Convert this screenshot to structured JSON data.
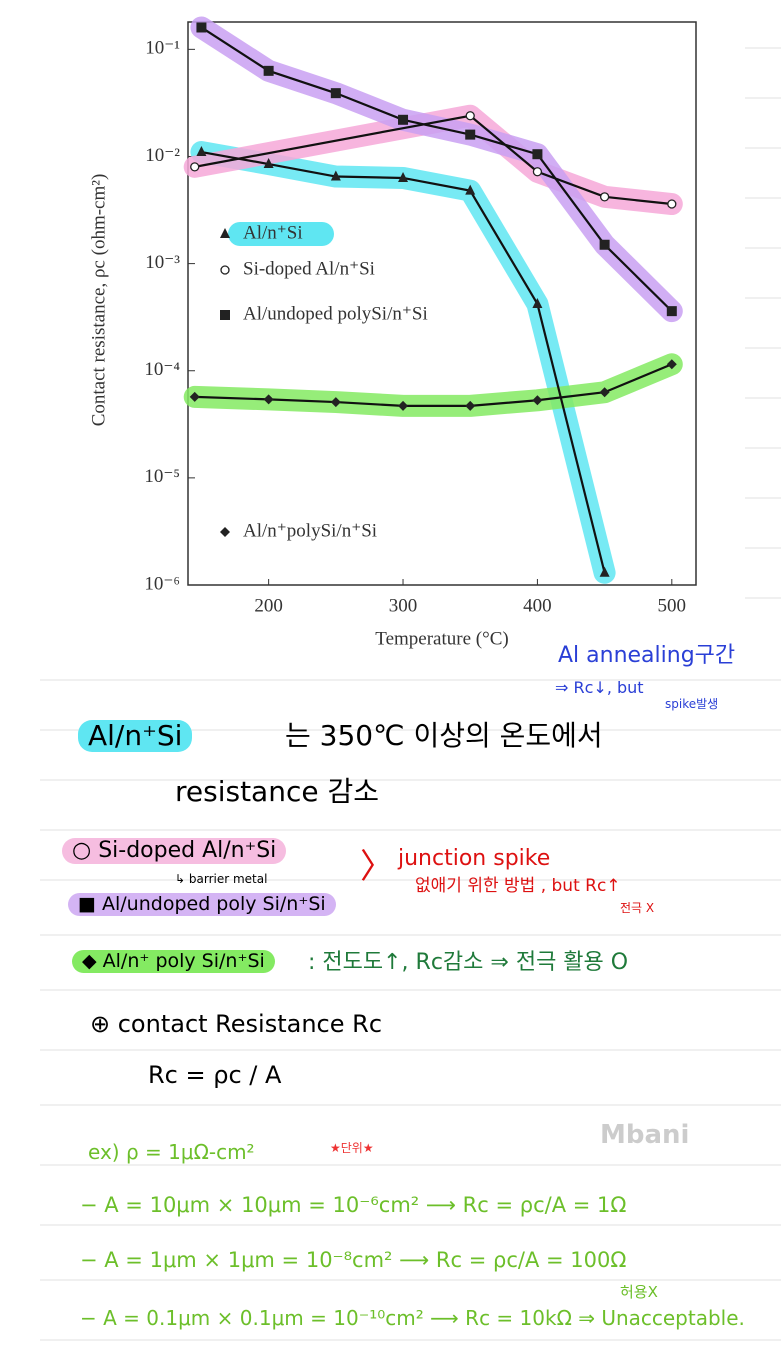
{
  "chart_data": {
    "type": "line",
    "log_y": true,
    "xlabel": "Temperature (°C)",
    "ylabel": "Contact resistance, ρc (ohm-cm²)",
    "xlim": [
      140,
      518
    ],
    "ylim": [
      1e-06,
      0.18
    ],
    "xticks": [
      200,
      300,
      400,
      500
    ],
    "yticks": [
      {
        "value": 1e-06,
        "label": "10⁻⁶"
      },
      {
        "value": 1e-05,
        "label": "10⁻⁵"
      },
      {
        "value": 0.0001,
        "label": "10⁻⁴"
      },
      {
        "value": 0.001,
        "label": "10⁻³"
      },
      {
        "value": 0.01,
        "label": "10⁻²"
      },
      {
        "value": 0.1,
        "label": "10⁻¹"
      }
    ],
    "series": [
      {
        "name": "Al/n⁺Si",
        "marker": "triangle",
        "color": "#5fe6f2",
        "x": [
          150,
          200,
          250,
          300,
          350,
          400,
          450
        ],
        "values": [
          0.011,
          0.0085,
          0.0065,
          0.0063,
          0.0048,
          0.00042,
          1.3e-06
        ]
      },
      {
        "name": "Si-doped Al/n⁺Si",
        "marker": "circle",
        "color": "#f6a8d8",
        "x": [
          145,
          350,
          400,
          450,
          500
        ],
        "values": [
          0.008,
          0.024,
          0.0072,
          0.0042,
          0.0036
        ]
      },
      {
        "name": "Al/undoped polySi/n⁺Si",
        "marker": "square",
        "color": "#c9a0f2",
        "x": [
          150,
          200,
          250,
          300,
          350,
          400,
          450,
          500
        ],
        "values": [
          0.16,
          0.063,
          0.039,
          0.022,
          0.016,
          0.0105,
          0.0015,
          0.00036
        ]
      },
      {
        "name": "Al/n⁺polySi/n⁺Si",
        "marker": "diamond",
        "color": "#84ea62",
        "x": [
          145,
          200,
          250,
          300,
          350,
          400,
          450,
          500
        ],
        "values": [
          5.7e-05,
          5.4e-05,
          5.1e-05,
          4.7e-05,
          4.7e-05,
          5.3e-05,
          6.3e-05,
          0.000115
        ]
      }
    ]
  },
  "notes": [
    "Al annealing구간",
    "⇒ Rc↓, but",
    "spike발생",
    "Al/n⁺Si",
    "는  350℃ 이상의 온도에서",
    "resistance 감소",
    "○ Si-doped Al/n⁺Si",
    "↳ barrier metal",
    "■ Al/undoped poly Si/n⁺Si",
    "〉",
    "junction spike",
    "없애기 위한 방법 ,  but Rc↑",
    "전극 X",
    "◆ Al/n⁺ poly Si/n⁺Si",
    ": 전도도↑, Rc감소 ⇒ 전극 활용 O",
    "⊕ contact Resistance  Rc",
    "Rc = ρc / A",
    "Mbani",
    "ex)  ρ = 1μΩ-cm²",
    "★단위★",
    "− A = 10μm × 10μm = 10⁻⁶cm²  ⟶  Rc = ρc/A = 1Ω",
    "− A = 1μm × 1μm = 10⁻⁸cm² ⟶  Rc = ρc/A = 100Ω",
    "− A = 0.1μm × 0.1μm = 10⁻¹⁰cm² ⟶  Rc = 10kΩ  ⇒ Unacceptable.",
    "허용X"
  ]
}
